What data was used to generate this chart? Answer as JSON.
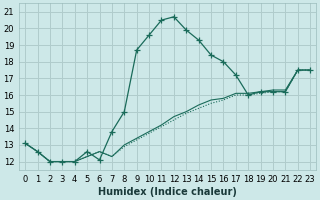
{
  "xlabel": "Humidex (Indice chaleur)",
  "ylabel": "",
  "bg_color": "#cde8e8",
  "grid_color": "#b0cccc",
  "line_color": "#1a6b5a",
  "xlim": [
    -0.5,
    23.5
  ],
  "ylim": [
    11.5,
    21.5
  ],
  "xticks": [
    0,
    1,
    2,
    3,
    4,
    5,
    6,
    7,
    8,
    9,
    10,
    11,
    12,
    13,
    14,
    15,
    16,
    17,
    18,
    19,
    20,
    21,
    22,
    23
  ],
  "yticks": [
    12,
    13,
    14,
    15,
    16,
    17,
    18,
    19,
    20,
    21
  ],
  "main_x": [
    0,
    1,
    2,
    3,
    4,
    5,
    6,
    7,
    8,
    9,
    10,
    11,
    12,
    13,
    14,
    15,
    16,
    17,
    18,
    19,
    20,
    21,
    22,
    23
  ],
  "main_y": [
    13.1,
    12.6,
    12.0,
    12.0,
    12.0,
    12.6,
    12.1,
    13.8,
    15.0,
    18.7,
    19.6,
    20.5,
    20.7,
    19.9,
    19.3,
    18.4,
    18.0,
    17.2,
    16.0,
    16.2,
    16.2,
    16.2,
    17.5,
    17.5
  ],
  "line2_x": [
    0,
    1,
    2,
    3,
    4,
    5,
    6,
    7,
    8,
    9,
    10,
    11,
    12,
    13,
    14,
    15,
    16,
    17,
    18,
    19,
    20,
    21,
    22,
    23
  ],
  "line2_y": [
    13.1,
    12.6,
    12.0,
    12.0,
    12.0,
    12.3,
    12.6,
    12.3,
    12.9,
    13.3,
    13.7,
    14.1,
    14.5,
    14.9,
    15.2,
    15.5,
    15.7,
    16.0,
    16.0,
    16.1,
    16.2,
    16.2,
    17.5,
    17.5
  ],
  "line3_x": [
    0,
    1,
    2,
    3,
    4,
    5,
    6,
    7,
    8,
    9,
    10,
    11,
    12,
    13,
    14,
    15,
    16,
    17,
    18,
    19,
    20,
    21,
    22,
    23
  ],
  "line3_y": [
    13.1,
    12.6,
    12.0,
    12.0,
    12.0,
    12.3,
    12.6,
    12.3,
    13.0,
    13.4,
    13.8,
    14.2,
    14.7,
    15.0,
    15.4,
    15.7,
    15.8,
    16.1,
    16.1,
    16.2,
    16.3,
    16.3,
    17.5,
    17.5
  ]
}
